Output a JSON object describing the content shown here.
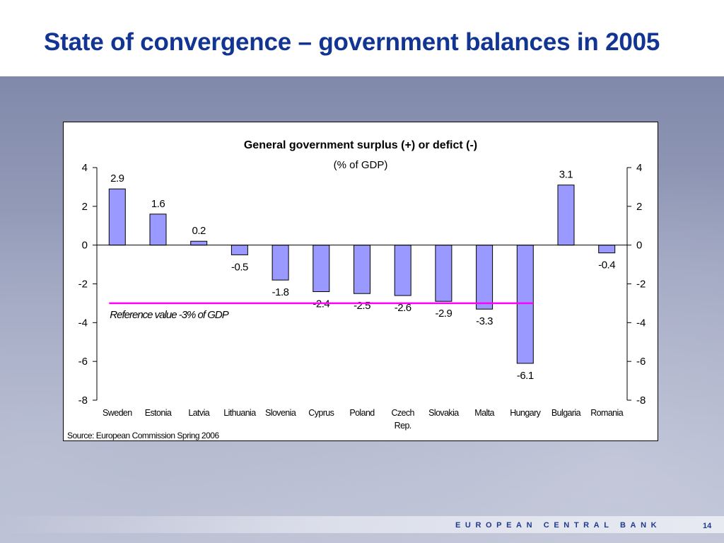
{
  "slide": {
    "title": "State of convergence – government balances in 2005",
    "footer": "EUROPEAN CENTRAL BANK",
    "page_number": "14"
  },
  "colors": {
    "title": "#123594",
    "bar_fill": "#9999ff",
    "reference_line": "#ff00ff",
    "footer_text": "#1d3a8f"
  },
  "chart_data": {
    "type": "bar",
    "title": "General government surplus (+) or defict (-)",
    "subtitle": "(% of GDP)",
    "categories": [
      "Sweden",
      "Estonia",
      "Latvia",
      "Lithuania",
      "Slovenia",
      "Cyprus",
      "Poland",
      "Czech Rep.",
      "Slovakia",
      "Malta",
      "Hungary",
      "Bulgaria",
      "Romania"
    ],
    "category_lines": [
      [
        "Sweden"
      ],
      [
        "Estonia"
      ],
      [
        "Latvia"
      ],
      [
        "Lithuania"
      ],
      [
        "Slovenia"
      ],
      [
        "Cyprus"
      ],
      [
        "Poland"
      ],
      [
        "Czech",
        "Rep."
      ],
      [
        "Slovakia"
      ],
      [
        "Malta"
      ],
      [
        "Hungary"
      ],
      [
        "Bulgaria"
      ],
      [
        "Romania"
      ]
    ],
    "values": [
      2.9,
      1.6,
      0.2,
      -0.5,
      -1.8,
      -2.4,
      -2.5,
      -2.6,
      -2.9,
      -3.3,
      -6.1,
      3.1,
      -0.4
    ],
    "value_labels": [
      "2.9",
      "1.6",
      "0.2",
      "-0.5",
      "-1.8",
      "-2.4",
      "-2.5",
      "-2.6",
      "-2.9",
      "-3.3",
      "-6.1",
      "3.1",
      "-0.4"
    ],
    "ylim": [
      -8,
      4
    ],
    "yticks": [
      4,
      2,
      0,
      -2,
      -4,
      -6,
      -8
    ],
    "ytick_labels": [
      "4",
      "2",
      "0",
      "-2",
      "-4",
      "-6",
      "-8"
    ],
    "secondary_y_axis": true,
    "grid": false,
    "reference_line": {
      "value": -3,
      "label": "Reference value -3% of GDP",
      "from_category": "Sweden",
      "to_category": "Hungary"
    },
    "source": "Source: European Commission Spring 2006"
  }
}
